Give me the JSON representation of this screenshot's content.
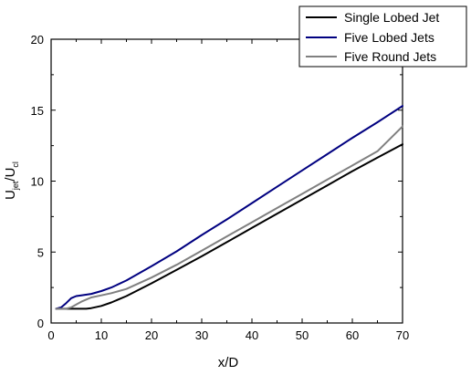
{
  "chart_data": {
    "type": "line",
    "title": "",
    "xlabel": "x/D",
    "ylabel": {
      "main": "U",
      "sub1": "jet",
      "sep": "/U",
      "sub2": "cl"
    },
    "xlim": [
      0,
      70
    ],
    "ylim": [
      0,
      20
    ],
    "x_ticks": [
      0,
      10,
      20,
      30,
      40,
      50,
      60,
      70
    ],
    "y_ticks": [
      0,
      5,
      10,
      15,
      20
    ],
    "grid": false,
    "legend_position": "top-right",
    "series": [
      {
        "name": "Single Lobed Jet",
        "color": "#000000",
        "x": [
          1,
          2,
          3,
          4,
          5,
          6,
          7,
          8,
          10,
          12,
          15,
          20,
          25,
          30,
          35,
          40,
          45,
          50,
          55,
          60,
          65,
          70
        ],
        "y": [
          1.0,
          1.0,
          1.0,
          1.0,
          1.0,
          1.0,
          1.0,
          1.05,
          1.2,
          1.45,
          1.9,
          2.8,
          3.75,
          4.7,
          5.7,
          6.7,
          7.7,
          8.7,
          9.7,
          10.7,
          11.65,
          12.6
        ]
      },
      {
        "name": "Five Lobed Jets",
        "color": "#000080",
        "x": [
          1,
          2,
          3,
          4,
          5,
          6,
          8,
          10,
          12,
          15,
          20,
          25,
          30,
          35,
          40,
          45,
          50,
          55,
          60,
          65,
          70
        ],
        "y": [
          1.0,
          1.1,
          1.4,
          1.75,
          1.9,
          1.95,
          2.05,
          2.25,
          2.5,
          3.0,
          4.0,
          5.05,
          6.2,
          7.3,
          8.45,
          9.6,
          10.75,
          11.9,
          13.05,
          14.15,
          15.3
        ]
      },
      {
        "name": "Five Round Jets",
        "color": "#808080",
        "x": [
          1,
          2,
          3,
          4,
          5,
          6,
          7,
          8,
          10,
          12,
          15,
          20,
          25,
          30,
          35,
          40,
          45,
          50,
          55,
          60,
          65,
          70
        ],
        "y": [
          1.0,
          1.0,
          1.0,
          1.1,
          1.3,
          1.5,
          1.65,
          1.8,
          1.95,
          2.1,
          2.4,
          3.2,
          4.1,
          5.1,
          6.1,
          7.1,
          8.1,
          9.1,
          10.1,
          11.1,
          12.1,
          13.85
        ]
      }
    ]
  }
}
